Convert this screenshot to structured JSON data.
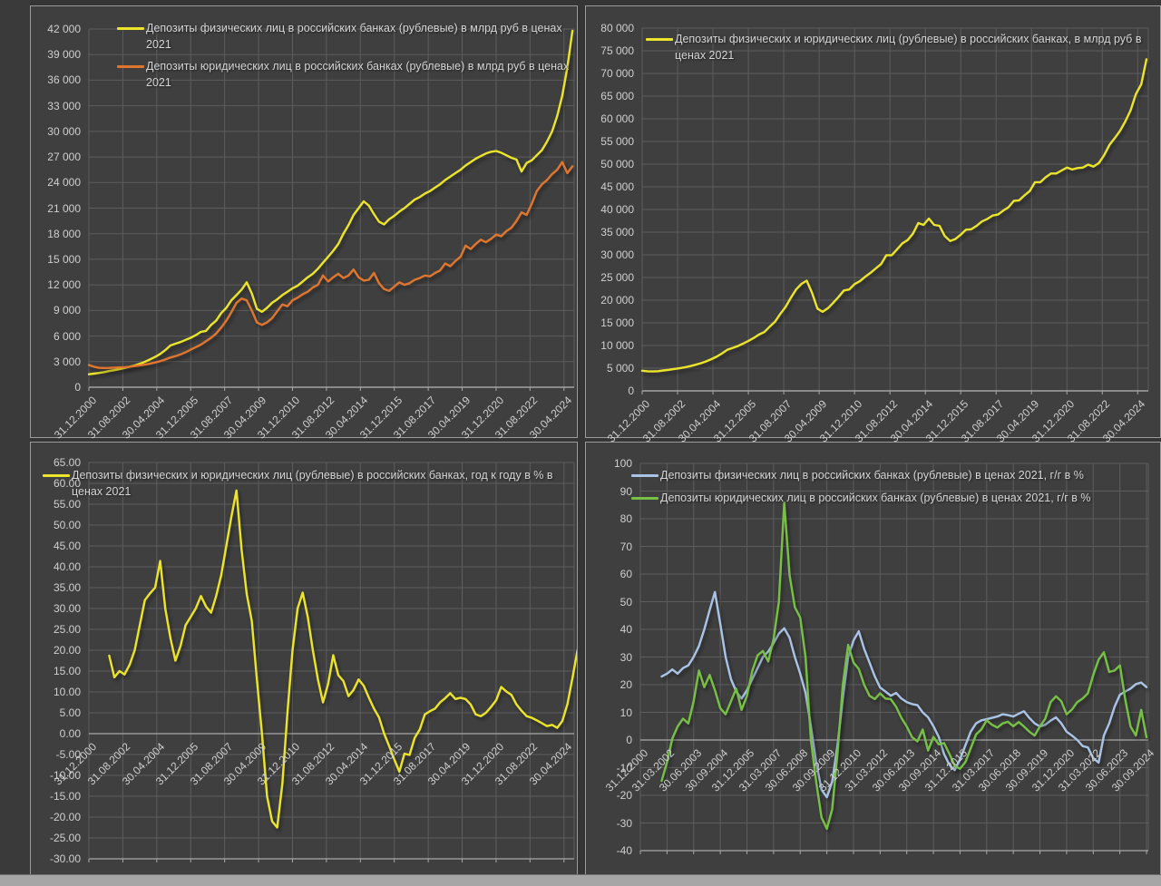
{
  "page": {
    "background_color": "#3f3f3f",
    "gridline_color": "#5d5d5d",
    "axis_line_color": "#a9a9a9",
    "tick_text_color": "#cfcfcf",
    "legend_text_color": "#d6d6d6"
  },
  "chart_data": [
    {
      "id": "deposits-levels-individuals-vs-legal",
      "type": "line",
      "grid": true,
      "legend_position": "top-left-inside",
      "x_label_rotation": -45,
      "y_axis": {
        "min": 0,
        "max": 42000,
        "step": 3000
      },
      "y_tick_labels": [
        "42 000",
        "39 000",
        "36 000",
        "33 000",
        "30 000",
        "27 000",
        "24 000",
        "21 000",
        "18 000",
        "15 000",
        "12 000",
        "9 000",
        "6 000",
        "3 000",
        "0"
      ],
      "x_tick_labels": [
        "31.12.2000",
        "31.08.2002",
        "30.04.2004",
        "31.12.2005",
        "31.08.2007",
        "30.04.2009",
        "31.12.2010",
        "31.08.2012",
        "30.04.2014",
        "31.12.2015",
        "31.08.2017",
        "30.04.2019",
        "31.12.2020",
        "31.08.2022",
        "30.04.2024"
      ],
      "legend": [
        {
          "label": "Депозиты физических лиц в российских банках (рублевые) в млрд руб в ценах 2021",
          "color": "#ece42a"
        },
        {
          "label": "Депозиты юридических лиц в российских банках (рублевые) в млрд руб в ценах 2021",
          "color": "#e0762e"
        }
      ],
      "series": [
        {
          "name": "Депозиты физических лиц в российских банках (рублевые) в млрд руб в ценах 2021",
          "color": "#ece42a",
          "start": "2000-12",
          "interval_months": 3,
          "values": [
            1520,
            1600,
            1680,
            1780,
            1900,
            2000,
            2120,
            2260,
            2400,
            2550,
            2750,
            2980,
            3250,
            3550,
            3900,
            4350,
            4890,
            5100,
            5300,
            5550,
            5800,
            6100,
            6500,
            6600,
            7300,
            7800,
            8700,
            9300,
            10200,
            10800,
            11450,
            12300,
            11000,
            9200,
            8850,
            9300,
            9900,
            10300,
            10800,
            11200,
            11600,
            11900,
            12400,
            12900,
            13300,
            13900,
            14600,
            15300,
            16000,
            16800,
            18000,
            19000,
            20200,
            21000,
            21800,
            21300,
            20300,
            19400,
            19100,
            19700,
            20100,
            20600,
            21000,
            21500,
            22000,
            22300,
            22700,
            23000,
            23400,
            23800,
            24300,
            24700,
            25100,
            25500,
            26000,
            26400,
            26800,
            27100,
            27400,
            27600,
            27700,
            27500,
            27200,
            26900,
            26700,
            25300,
            26300,
            26600,
            27200,
            27800,
            28800,
            30000,
            31800,
            34200,
            37500,
            41800
          ]
        },
        {
          "name": "Депозиты юридических лиц в российских банках (рублевые) в млрд руб в ценах 2021",
          "color": "#e0762e",
          "start": "2000-12",
          "interval_months": 3,
          "values": [
            2600,
            2400,
            2280,
            2250,
            2270,
            2300,
            2330,
            2350,
            2400,
            2480,
            2560,
            2650,
            2750,
            2900,
            3050,
            3250,
            3480,
            3650,
            3850,
            4100,
            4400,
            4700,
            5000,
            5400,
            5800,
            6300,
            7000,
            7800,
            8800,
            9900,
            10400,
            10200,
            9000,
            7600,
            7300,
            7600,
            8100,
            8900,
            9700,
            9500,
            10200,
            10500,
            10900,
            11200,
            11700,
            12000,
            13100,
            12400,
            12900,
            13300,
            12800,
            13100,
            13800,
            12900,
            12500,
            12600,
            13400,
            12200,
            11500,
            11300,
            11800,
            12300,
            12000,
            12200,
            12600,
            12800,
            13100,
            13000,
            13400,
            13700,
            14500,
            14200,
            14800,
            15300,
            16600,
            16200,
            16800,
            17300,
            17000,
            17400,
            17900,
            17700,
            18300,
            18700,
            19500,
            20500,
            20200,
            21500,
            23000,
            23800,
            24300,
            25000,
            25500,
            26400,
            25100,
            25900
          ]
        }
      ]
    },
    {
      "id": "deposits-levels-total",
      "type": "line",
      "grid": true,
      "legend_position": "top-left-inside",
      "x_label_rotation": -45,
      "y_axis": {
        "min": 0,
        "max": 80000,
        "step": 5000
      },
      "y_tick_labels": [
        "80 000",
        "75 000",
        "70 000",
        "65 000",
        "60 000",
        "55 000",
        "50 000",
        "45 000",
        "40 000",
        "35 000",
        "30 000",
        "25 000",
        "20 000",
        "15 000",
        "10 000",
        "5 000",
        "0"
      ],
      "x_tick_labels": [
        "31.12.2000",
        "31.08.2002",
        "30.04.2004",
        "31.12.2005",
        "31.08.2007",
        "30.04.2009",
        "31.12.2010",
        "31.08.2012",
        "30.04.2014",
        "31.12.2015",
        "31.08.2017",
        "30.04.2019",
        "31.12.2020",
        "31.08.2022",
        "30.04.2024"
      ],
      "legend": [
        {
          "label": "Депозиты физических и юридических лиц (рублевые) в российских банках, в млрд руб в ценах 2021",
          "color": "#ece42a"
        }
      ],
      "series": [
        {
          "name": "Депозиты физических и юридических лиц (рублевые) в российских банках, в млрд руб в ценах 2021",
          "color": "#ece42a",
          "start": "2000-12",
          "interval_months": 3,
          "values": [
            4450,
            4320,
            4280,
            4350,
            4500,
            4640,
            4810,
            4980,
            5180,
            5430,
            5730,
            6080,
            6480,
            6970,
            7510,
            8210,
            9040,
            9450,
            9880,
            10420,
            11020,
            11660,
            12420,
            12960,
            14150,
            15230,
            16960,
            18470,
            20520,
            22360,
            23600,
            24300,
            21600,
            18140,
            17440,
            18250,
            19440,
            20740,
            22140,
            22360,
            23540,
            24190,
            25160,
            26030,
            27000,
            27970,
            29920,
            29920,
            31210,
            32510,
            33260,
            34670,
            37000,
            36610,
            38000,
            36610,
            36400,
            34130,
            33050,
            33480,
            34450,
            35530,
            35640,
            36400,
            37370,
            37910,
            38660,
            38880,
            39740,
            40500,
            41900,
            42010,
            43090,
            44060,
            46010,
            46010,
            47090,
            47950,
            47950,
            48600,
            49250,
            48820,
            49140,
            49250,
            49900,
            49460,
            50220,
            51950,
            54220,
            55730,
            57350,
            59400,
            61880,
            65450,
            67610,
            73120
          ]
        }
      ]
    },
    {
      "id": "deposits-total-yoy-growth",
      "type": "line",
      "grid": true,
      "legend_position": "top-left-inside",
      "x_label_rotation": -45,
      "y_axis": {
        "min": -30,
        "max": 65,
        "step": 5
      },
      "y_tick_labels": [
        "65.00",
        "60.00",
        "55.00",
        "50.00",
        "45.00",
        "40.00",
        "35.00",
        "30.00",
        "25.00",
        "20.00",
        "15.00",
        "10.00",
        "5.00",
        "0.00",
        "-5.00",
        "-10.00",
        "-15.00",
        "-20.00",
        "-25.00",
        "-30.00"
      ],
      "x_tick_labels": [
        "31.12.2000",
        "31.08.2002",
        "30.04.2004",
        "31.12.2005",
        "31.08.2007",
        "30.04.2009",
        "31.12.2010",
        "31.08.2012",
        "30.04.2014",
        "31.12.2015",
        "31.08.2017",
        "30.04.2019",
        "31.12.2020",
        "31.08.2022",
        "30.04.2024"
      ],
      "legend": [
        {
          "label": "Депозиты физических и юридических лиц (рублевые) в российских банках, год к году в % в ценах 2021",
          "color": "#ece42a"
        }
      ],
      "series": [
        {
          "name": "Депозиты физических и юридических лиц (рублевые) в российских банках, год к году в % в ценах 2021",
          "color": "#ece42a",
          "start": "2001-12",
          "interval_months": 3,
          "values": [
            18.7,
            13.5,
            15.0,
            14.2,
            16.5,
            20.0,
            26.0,
            32.0,
            33.6,
            35.0,
            41.4,
            30.0,
            23.0,
            17.5,
            21.0,
            26.0,
            28.0,
            30.0,
            33.0,
            30.5,
            29.0,
            33.0,
            38.0,
            45.0,
            52.0,
            58.3,
            44.0,
            33.5,
            27.0,
            13.0,
            0.0,
            -15.0,
            -21.0,
            -22.5,
            -12.0,
            5.0,
            20.0,
            30.0,
            33.8,
            28.0,
            20.0,
            13.0,
            7.5,
            12.0,
            18.8,
            14.0,
            12.6,
            9.0,
            10.5,
            13.0,
            11.5,
            8.6,
            6.0,
            3.9,
            0.0,
            -3.0,
            -6.2,
            -9.1,
            -4.8,
            -5.1,
            -1.0,
            1.0,
            4.6,
            5.4,
            6.0,
            7.5,
            8.5,
            9.7,
            8.3,
            8.6,
            8.3,
            7.0,
            4.6,
            4.2,
            5.0,
            6.4,
            8.0,
            11.2,
            10.1,
            9.3,
            7.0,
            5.5,
            4.2,
            3.8,
            3.2,
            2.5,
            1.8,
            2.1,
            1.4,
            3.0,
            7.0,
            13.3,
            20.0,
            23.1,
            14.5
          ]
        }
      ]
    },
    {
      "id": "deposits-yoy-growth-individuals-vs-legal",
      "type": "line",
      "grid": true,
      "legend_position": "top-left-inside",
      "x_label_rotation": -45,
      "y_axis": {
        "min": -40,
        "max": 100,
        "step": 10
      },
      "y_tick_labels": [
        "100",
        "90",
        "80",
        "70",
        "60",
        "50",
        "40",
        "30",
        "20",
        "10",
        "0",
        "-10",
        "-20",
        "-30",
        "-40"
      ],
      "x_tick_labels": [
        "31.12.2000",
        "31.03.2002",
        "30.06.2003",
        "30.09.2004",
        "31.12.2005",
        "31.03.2007",
        "30.06.2008",
        "30.09.2009",
        "31.12.2010",
        "31.03.2012",
        "30.06.2013",
        "30.09.2014",
        "31.12.2015",
        "31.03.2017",
        "30.06.2018",
        "30.09.2019",
        "31.12.2020",
        "31.03.2022",
        "30.06.2023",
        "30.09.2024"
      ],
      "legend": [
        {
          "label": "Депозиты физических лиц в российских банках (рублевые) в ценах 2021, г/г в %",
          "color": "#a9c3e6"
        },
        {
          "label": "Депозиты юридических лиц в российских банках (рублевые) в ценах 2021, г/г в %",
          "color": "#76c045"
        }
      ],
      "series": [
        {
          "name": "Депозиты физических лиц в российских банках (рублевые) в ценах 2021, г/г в %",
          "color": "#a9c3e6",
          "start": "2001-12",
          "interval_months": 3,
          "values": [
            23.0,
            24.0,
            25.5,
            24.0,
            26.0,
            27.0,
            30.0,
            34.0,
            40.0,
            47.0,
            53.5,
            42.0,
            30.0,
            22.0,
            17.5,
            15.0,
            18.0,
            22.0,
            26.0,
            30.0,
            32.0,
            35.0,
            38.5,
            40.4,
            37.0,
            30.0,
            24.0,
            17.0,
            5.0,
            -8.0,
            -18.0,
            -20.7,
            -15.0,
            -2.0,
            15.0,
            30.0,
            36.0,
            39.3,
            33.0,
            28.0,
            23.0,
            19.0,
            17.5,
            16.0,
            17.0,
            15.0,
            13.7,
            13.0,
            12.6,
            10.0,
            8.2,
            5.0,
            1.1,
            -5.0,
            -9.0,
            -10.9,
            -7.0,
            -2.0,
            3.0,
            6.0,
            7.1,
            7.5,
            8.0,
            8.5,
            9.3,
            9.0,
            8.5,
            9.5,
            10.4,
            8.0,
            6.0,
            4.9,
            5.5,
            7.0,
            8.2,
            6.0,
            3.0,
            1.6,
            0.0,
            -2.2,
            -2.7,
            -6.6,
            -8.2,
            1.6,
            6.0,
            12.0,
            16.4,
            17.5,
            18.6,
            20.2,
            20.8,
            19.1
          ]
        },
        {
          "name": "Депозиты юридических лиц в российских банках (рублевые) в ценах 2021, г/г в %",
          "color": "#76c045",
          "start": "2001-12",
          "interval_months": 3,
          "values": [
            -14.8,
            -8.0,
            0.5,
            4.9,
            7.7,
            6.0,
            14.0,
            25.1,
            19.1,
            23.5,
            18.0,
            11.5,
            9.3,
            14.0,
            18.6,
            10.9,
            16.0,
            25.0,
            30.6,
            32.2,
            28.4,
            36.6,
            50.0,
            85.8,
            59.6,
            48.0,
            44.3,
            30.0,
            0.0,
            -15.0,
            -28.0,
            -32.1,
            -25.0,
            -5.0,
            20.0,
            34.4,
            28.0,
            25.7,
            20.0,
            16.0,
            14.8,
            16.9,
            15.0,
            14.8,
            12.0,
            8.0,
            4.9,
            1.0,
            -0.5,
            3.8,
            -3.8,
            1.1,
            -1.6,
            -1.1,
            -5.0,
            -9.3,
            -10.4,
            -8.0,
            -3.0,
            2.0,
            3.8,
            7.1,
            5.5,
            4.5,
            6.0,
            6.6,
            5.0,
            6.5,
            4.9,
            3.0,
            1.6,
            5.0,
            7.7,
            13.7,
            15.8,
            14.0,
            9.3,
            11.0,
            13.7,
            15.0,
            16.9,
            23.5,
            29.0,
            31.7,
            24.6,
            25.1,
            27.0,
            14.8,
            4.9,
            1.6,
            10.9,
            1.0
          ]
        }
      ]
    }
  ]
}
